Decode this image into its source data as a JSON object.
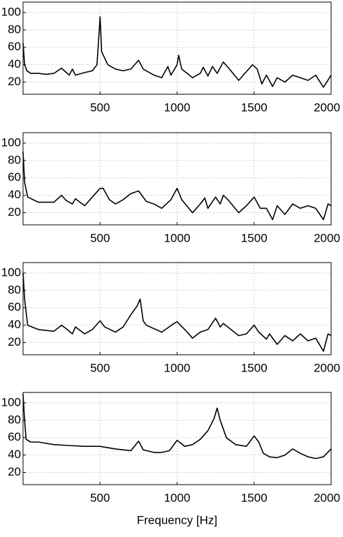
{
  "chart_data": [
    {
      "type": "line",
      "color": "#000000",
      "xlim": [
        0,
        2000
      ],
      "ylim": [
        6,
        112
      ],
      "xticks": [
        500,
        1000,
        1500,
        2000
      ],
      "yticks": [
        20,
        40,
        60,
        80,
        100
      ],
      "grid": true,
      "x": [
        0,
        10,
        25,
        50,
        100,
        150,
        200,
        250,
        275,
        300,
        320,
        340,
        400,
        450,
        480,
        500,
        510,
        550,
        600,
        650,
        700,
        750,
        780,
        850,
        900,
        940,
        960,
        1000,
        1010,
        1030,
        1100,
        1150,
        1170,
        1200,
        1230,
        1260,
        1300,
        1340,
        1400,
        1450,
        1490,
        1520,
        1550,
        1580,
        1620,
        1650,
        1700,
        1750,
        1800,
        1850,
        1900,
        1950,
        2000
      ],
      "values": [
        65,
        40,
        33,
        30,
        30,
        29,
        30,
        36,
        32,
        28,
        35,
        28,
        31,
        33,
        40,
        95,
        55,
        40,
        35,
        33,
        35,
        45,
        35,
        28,
        25,
        38,
        28,
        40,
        51,
        35,
        25,
        30,
        37,
        27,
        38,
        30,
        43,
        35,
        22,
        32,
        40,
        35,
        18,
        28,
        15,
        25,
        20,
        28,
        25,
        22,
        28,
        14,
        28
      ]
    },
    {
      "type": "line",
      "color": "#000000",
      "xlim": [
        0,
        2000
      ],
      "ylim": [
        6,
        112
      ],
      "xticks": [
        500,
        1000,
        1500,
        2000
      ],
      "yticks": [
        20,
        40,
        60,
        80,
        100
      ],
      "grid": true,
      "x": [
        0,
        10,
        30,
        100,
        200,
        250,
        280,
        320,
        340,
        400,
        450,
        500,
        520,
        560,
        600,
        650,
        700,
        750,
        800,
        850,
        900,
        960,
        1000,
        1030,
        1100,
        1150,
        1180,
        1200,
        1250,
        1280,
        1300,
        1330,
        1400,
        1450,
        1500,
        1540,
        1580,
        1620,
        1650,
        1700,
        1750,
        1800,
        1850,
        1900,
        1950,
        1980,
        2000
      ],
      "values": [
        90,
        55,
        38,
        32,
        32,
        40,
        34,
        30,
        36,
        28,
        38,
        48,
        48,
        35,
        30,
        35,
        42,
        45,
        33,
        30,
        25,
        35,
        48,
        35,
        20,
        30,
        37,
        25,
        38,
        30,
        40,
        35,
        20,
        28,
        38,
        25,
        25,
        12,
        28,
        18,
        30,
        25,
        28,
        25,
        12,
        30,
        28
      ]
    },
    {
      "type": "line",
      "color": "#000000",
      "xlim": [
        0,
        2000
      ],
      "ylim": [
        6,
        112
      ],
      "xticks": [
        500,
        1000,
        1500,
        2000
      ],
      "yticks": [
        20,
        40,
        60,
        80,
        100
      ],
      "grid": true,
      "x": [
        0,
        10,
        30,
        100,
        200,
        250,
        280,
        320,
        340,
        400,
        450,
        500,
        530,
        600,
        650,
        700,
        740,
        760,
        780,
        800,
        900,
        980,
        1000,
        1050,
        1100,
        1150,
        1200,
        1250,
        1280,
        1300,
        1350,
        1400,
        1450,
        1500,
        1530,
        1580,
        1600,
        1650,
        1700,
        1750,
        1800,
        1850,
        1900,
        1950,
        1980,
        2000
      ],
      "values": [
        100,
        70,
        40,
        35,
        33,
        40,
        36,
        30,
        38,
        30,
        35,
        45,
        38,
        32,
        38,
        52,
        62,
        70,
        45,
        40,
        32,
        42,
        44,
        35,
        25,
        32,
        35,
        48,
        38,
        42,
        35,
        28,
        30,
        40,
        32,
        24,
        30,
        18,
        28,
        22,
        30,
        22,
        25,
        10,
        30,
        28
      ]
    },
    {
      "type": "line",
      "color": "#000000",
      "xlim": [
        0,
        2000
      ],
      "ylim": [
        6,
        112
      ],
      "xticks": [
        500,
        1000,
        1500,
        2000
      ],
      "yticks": [
        20,
        40,
        60,
        80,
        100
      ],
      "grid": true,
      "xlabel": "Frequency [Hz]",
      "x": [
        0,
        10,
        20,
        50,
        100,
        200,
        300,
        400,
        500,
        600,
        700,
        750,
        780,
        850,
        900,
        950,
        1000,
        1050,
        1100,
        1150,
        1200,
        1240,
        1260,
        1280,
        1320,
        1380,
        1450,
        1500,
        1530,
        1560,
        1600,
        1650,
        1700,
        1750,
        1800,
        1850,
        1900,
        1950,
        2000
      ],
      "values": [
        110,
        80,
        58,
        55,
        55,
        52,
        51,
        50,
        50,
        47,
        45,
        56,
        46,
        43,
        43,
        45,
        57,
        50,
        52,
        58,
        68,
        82,
        94,
        80,
        60,
        52,
        50,
        62,
        55,
        42,
        38,
        37,
        40,
        47,
        42,
        38,
        36,
        38,
        47
      ]
    }
  ]
}
